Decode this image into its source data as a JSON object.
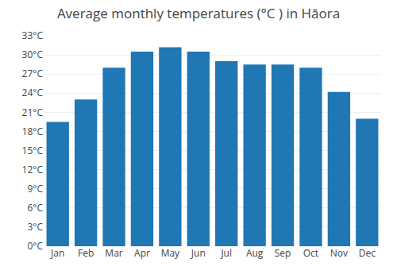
{
  "chart_data": {
    "type": "bar",
    "title": "Average monthly temperatures (°C ) in Hāora",
    "categories": [
      "Jan",
      "Feb",
      "Mar",
      "Apr",
      "May",
      "Jun",
      "Jul",
      "Aug",
      "Sep",
      "Oct",
      "Nov",
      "Dec"
    ],
    "values": [
      19.5,
      23.0,
      28.0,
      30.5,
      31.2,
      30.5,
      29.0,
      28.5,
      28.5,
      28.0,
      24.2,
      20.0
    ],
    "ylim": [
      0,
      33
    ],
    "yticks": [
      {
        "value": 0,
        "label": "0°C"
      },
      {
        "value": 3,
        "label": "3°C"
      },
      {
        "value": 6,
        "label": "6°C"
      },
      {
        "value": 9,
        "label": "9°C"
      },
      {
        "value": 12,
        "label": "12°C"
      },
      {
        "value": 15,
        "label": "15°C"
      },
      {
        "value": 18,
        "label": "18°C"
      },
      {
        "value": 21,
        "label": "21°C"
      },
      {
        "value": 24,
        "label": "24°C"
      },
      {
        "value": 27,
        "label": "27°C"
      },
      {
        "value": 30,
        "label": "30°C"
      },
      {
        "value": 33,
        "label": "33°C"
      }
    ],
    "grid": true
  }
}
